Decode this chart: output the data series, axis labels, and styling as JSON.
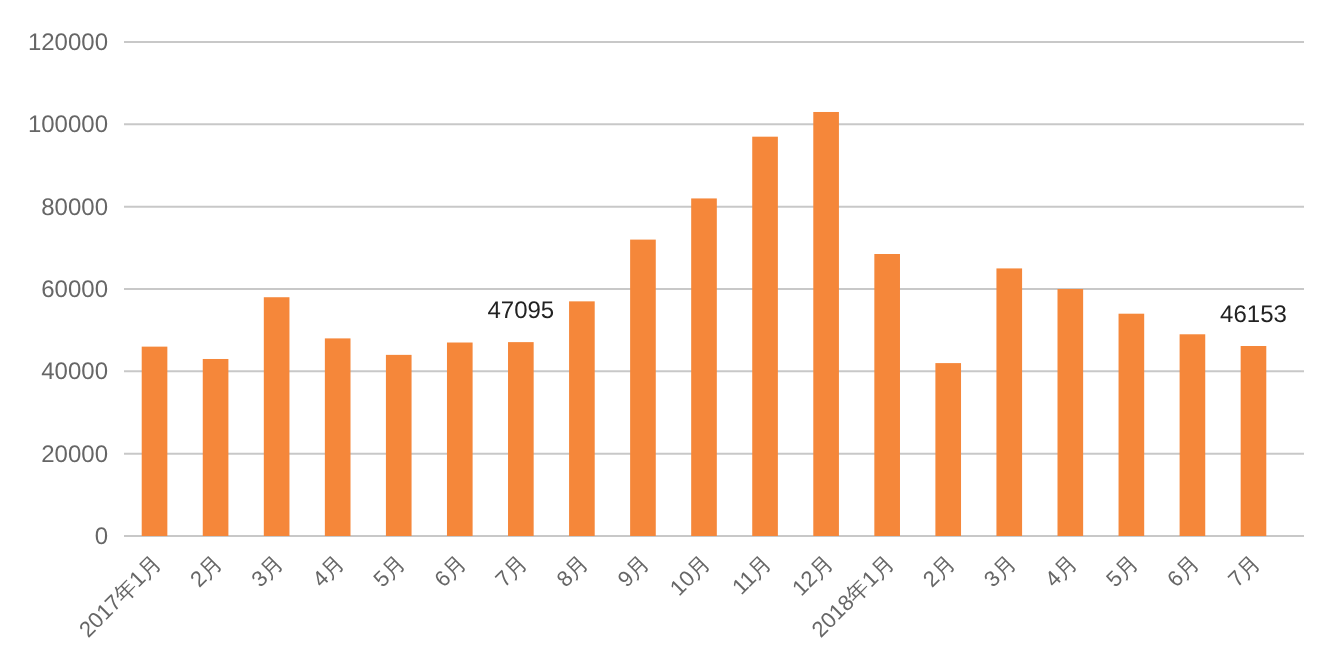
{
  "chart_data": {
    "type": "bar",
    "categories": [
      "2017年1月",
      "2月",
      "3月",
      "4月",
      "5月",
      "6月",
      "7月",
      "8月",
      "9月",
      "10月",
      "11月",
      "12月",
      "2018年1月",
      "2月",
      "3月",
      "4月",
      "5月",
      "6月",
      "7月"
    ],
    "values": [
      46000,
      43000,
      58000,
      48000,
      44000,
      47000,
      47095,
      57000,
      72000,
      82000,
      97000,
      103000,
      68500,
      42000,
      65000,
      60000,
      54000,
      49000,
      46153
    ],
    "value_labels": [
      null,
      null,
      null,
      null,
      null,
      null,
      "47095",
      null,
      null,
      null,
      null,
      null,
      null,
      null,
      null,
      null,
      null,
      null,
      "46153"
    ],
    "color": "#f5873a",
    "ylim": [
      0,
      120000
    ],
    "yticks": [
      0,
      20000,
      40000,
      60000,
      80000,
      100000,
      120000
    ],
    "grid": "y"
  }
}
